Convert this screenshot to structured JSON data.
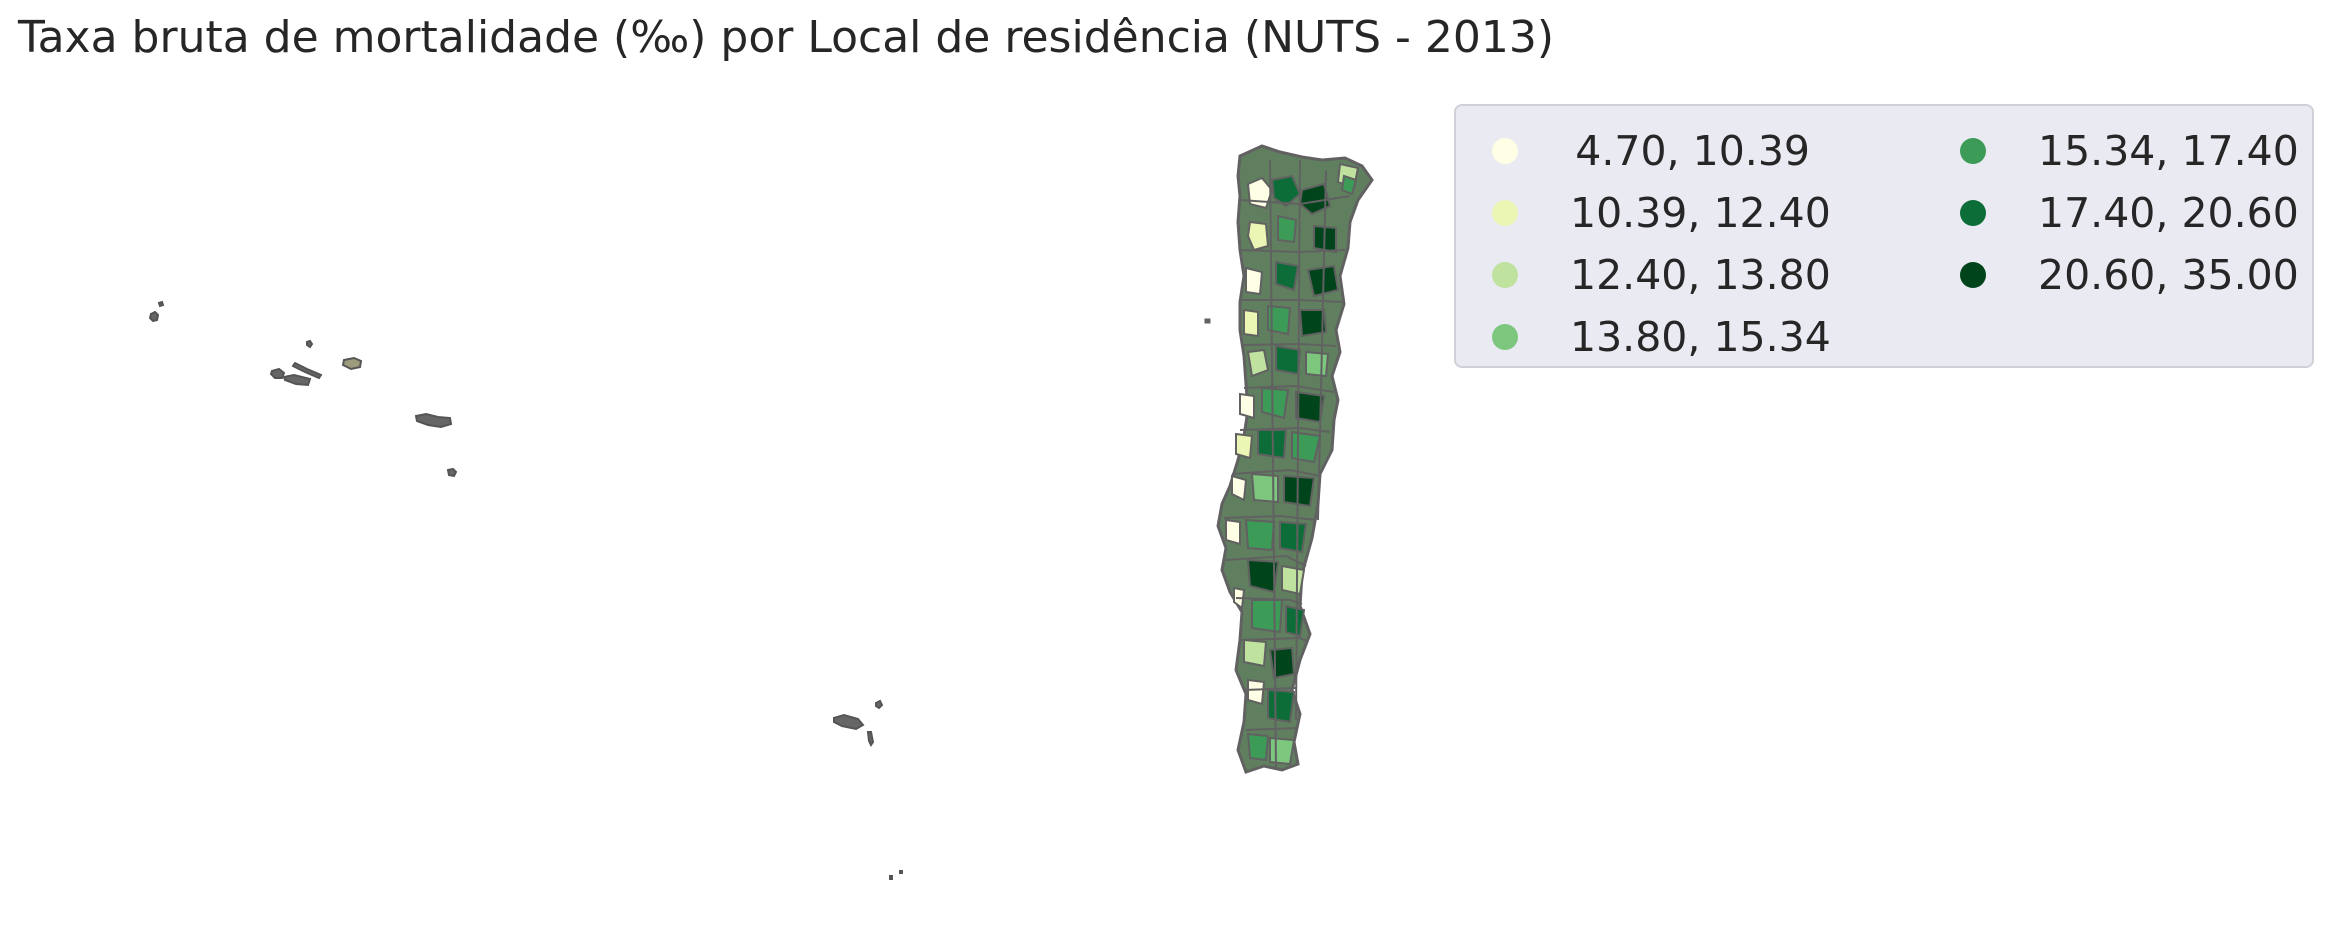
{
  "title": "Taxa bruta de mortalidade (‰) por Local de residência (NUTS - 2013)",
  "legend": {
    "columns": [
      [
        {
          "label": "4.70, 10.39",
          "color": "#ffffe5"
        },
        {
          "label": "10.39, 12.40",
          "color": "#ebf6b5"
        },
        {
          "label": "12.40, 13.80",
          "color": "#bfe39e"
        },
        {
          "label": "13.80, 15.34",
          "color": "#7dc67e"
        }
      ],
      [
        {
          "label": "15.34, 17.40",
          "color": "#3b9b57"
        },
        {
          "label": "17.40, 20.60",
          "color": "#0c6d38"
        },
        {
          "label": "20.60, 35.00",
          "color": "#00441b"
        }
      ]
    ]
  },
  "colors": {
    "border": "#616161",
    "legend_bg": "#eaeaf2"
  }
}
